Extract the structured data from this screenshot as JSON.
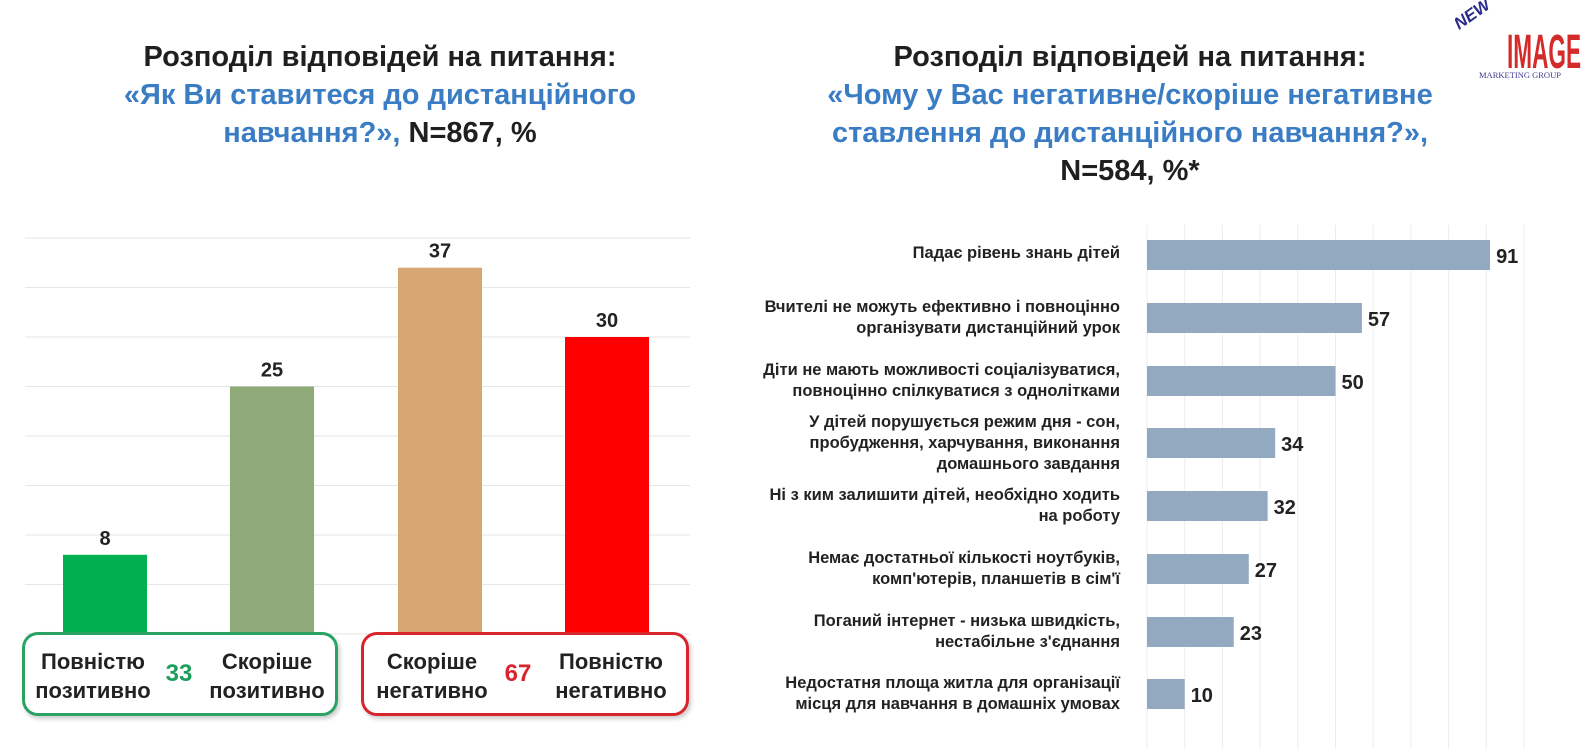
{
  "logo": {
    "text_top": "NEW",
    "text_main": "IMAGE",
    "text_sub": "MARKETING GROUP"
  },
  "chart_data": [
    {
      "type": "bar",
      "title_line1": "Розподіл відповідей на питання:",
      "title_question": "«Як Ви ставитеся до дистанційного навчання?»,",
      "title_n": "N=867, %",
      "categories": [
        "Повністю позитивно",
        "Скоріше позитивно",
        "Скоріше негативно",
        "Повністю негативно"
      ],
      "values": [
        8,
        25,
        37,
        30
      ],
      "colors": [
        "#00b050",
        "#8faa78",
        "#d8a672",
        "#ff0000"
      ],
      "ylim": [
        0,
        40
      ],
      "grid": true,
      "groups": [
        {
          "total": 33,
          "color": "#1a9f5a",
          "labels": [
            "Повністю позитивно",
            "Скоріше позитивно"
          ],
          "label_lines": [
            [
              "Повністю",
              "позитивно"
            ],
            [
              "Скоріше",
              "позитивно"
            ]
          ]
        },
        {
          "total": 67,
          "color": "#d9232d",
          "labels": [
            "Скоріше негативно",
            "Повністю негативно"
          ],
          "label_lines": [
            [
              "Скоріше",
              "негативно"
            ],
            [
              "Повністю",
              "негативно"
            ]
          ]
        }
      ]
    },
    {
      "type": "bar",
      "orientation": "horizontal",
      "title_line1": "Розподіл відповідей на питання:",
      "title_question": "«Чому у Вас негативне/скоріше негативне ставлення до дистанційного навчання?»,",
      "title_n": "N=584, %*",
      "categories": [
        "Падає рівень знань дітей",
        "Вчителі не можуть ефективно і повноцінно організувати дистанційний урок",
        "Діти не мають можливості соціалізуватися, повноцінно спілкуватися з однолітками",
        "У дітей порушується режим дня - сон, пробудження, харчування, виконання домашнього завдання",
        "Ні з ким залишити дітей, необхідно ходить на роботу",
        "Немає достатньої кількості ноутбуків, комп'ютерів, планшетів в сім'ї",
        "Поганий інтернет - низька швидкість, нестабільне з'єднання",
        "Недостатня площа житла для організації місця для навчання в домашніх умовах"
      ],
      "category_lines": [
        [
          "Падає рівень знань дітей"
        ],
        [
          "Вчителі не можуть ефективно і повноцінно",
          "організувати дистанційний урок"
        ],
        [
          "Діти не мають можливості соціалізуватися,",
          "повноцінно спілкуватися з однолітками"
        ],
        [
          "У дітей порушується режим дня - сон,",
          "пробудження, харчування, виконання",
          "домашнього завдання"
        ],
        [
          "Ні з ким залишити дітей, необхідно ходить",
          "на роботу"
        ],
        [
          "Немає достатньої кількості ноутбуків,",
          "комп'ютерів, планшетів в сім'ї"
        ],
        [
          "Поганий інтернет - низька швидкість,",
          "нестабільне з'єднання"
        ],
        [
          "Недостатня площа житла для організації",
          "місця для навчання в домашніх умовах"
        ]
      ],
      "values": [
        91,
        57,
        50,
        34,
        32,
        27,
        23,
        10
      ],
      "color": "#93a9bf",
      "xlim": [
        0,
        100
      ],
      "grid": true
    }
  ]
}
